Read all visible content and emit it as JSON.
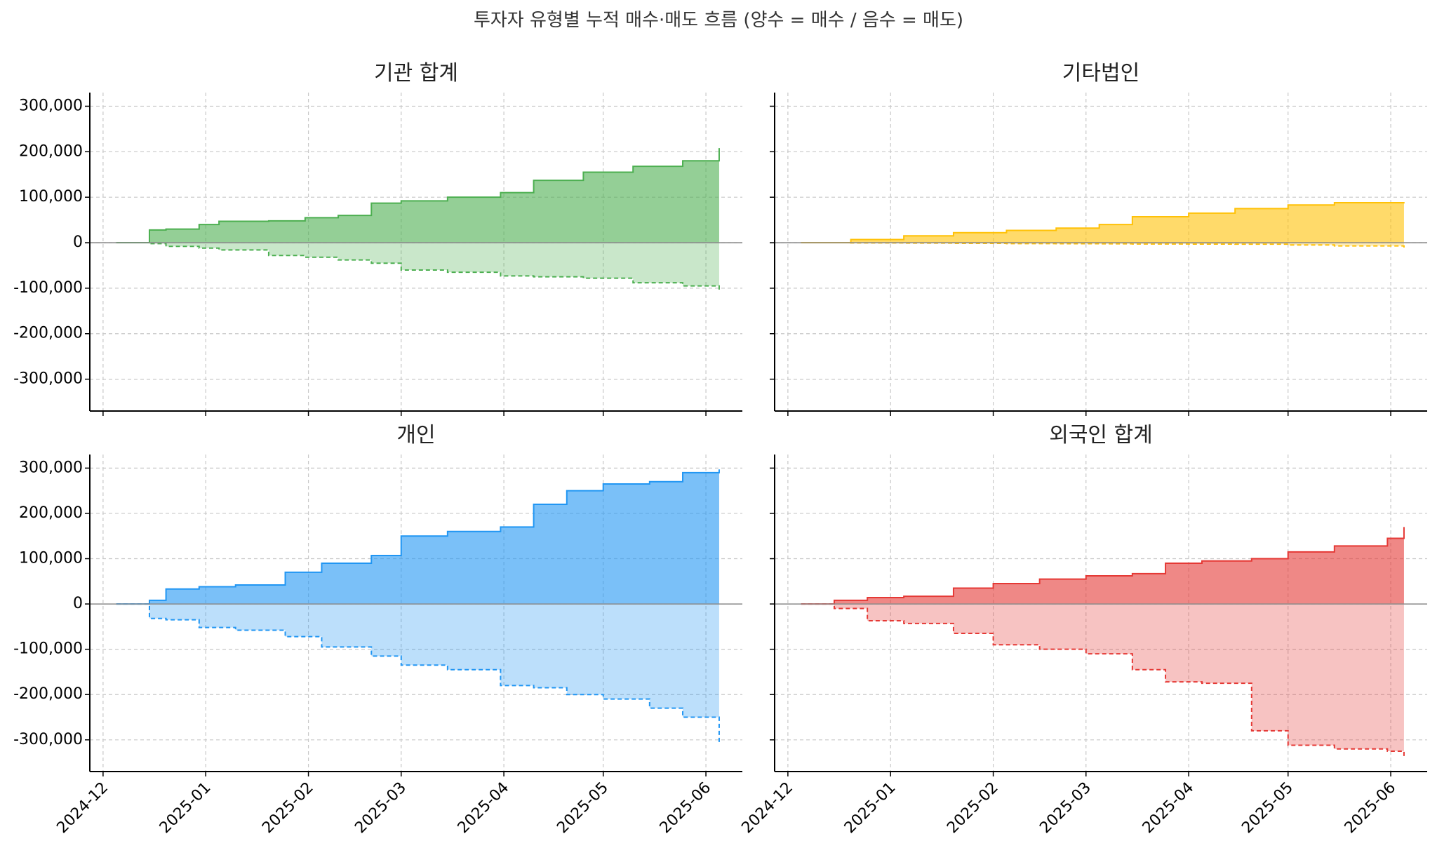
{
  "figure_title": "투자자 유형별 누적 매수·매도 흐름 (양수 = 매수 / 음수 = 매도)",
  "chart_data": [
    {
      "type": "area",
      "title": "기관 합계",
      "color": "#4caf50",
      "x_dates": [
        "2024-12-05",
        "2024-12-15",
        "2024-12-20",
        "2024-12-30",
        "2025-01-05",
        "2025-01-20",
        "2025-01-31",
        "2025-02-10",
        "2025-02-20",
        "2025-03-01",
        "2025-03-15",
        "2025-03-31",
        "2025-04-10",
        "2025-04-25",
        "2025-05-10",
        "2025-05-25",
        "2025-06-05"
      ],
      "buy": [
        0,
        28000,
        30000,
        40000,
        47000,
        48000,
        55000,
        60000,
        87000,
        92000,
        100000,
        110000,
        137000,
        155000,
        168000,
        180000,
        208000
      ],
      "sell": [
        0,
        -2000,
        -8000,
        -12000,
        -16000,
        -28000,
        -32000,
        -38000,
        -45000,
        -60000,
        -65000,
        -73000,
        -75000,
        -78000,
        -88000,
        -95000,
        -107000
      ],
      "ylim": [
        -370000,
        330000
      ],
      "yticks": [
        -300000,
        -200000,
        -100000,
        0,
        100000,
        200000,
        300000
      ],
      "ytick_labels": [
        "-300,000",
        "-200,000",
        "-100,000",
        "0",
        "100,000",
        "200,000",
        "300,000"
      ],
      "grid": true
    },
    {
      "type": "area",
      "title": "기타법인",
      "color": "#ffc107",
      "x_dates": [
        "2024-12-05",
        "2024-12-20",
        "2025-01-05",
        "2025-01-20",
        "2025-02-05",
        "2025-02-20",
        "2025-03-05",
        "2025-03-15",
        "2025-04-01",
        "2025-04-15",
        "2025-05-01",
        "2025-05-15",
        "2025-06-05"
      ],
      "buy": [
        0,
        7000,
        15000,
        22000,
        27000,
        32000,
        40000,
        57000,
        65000,
        75000,
        83000,
        88000,
        89000
      ],
      "sell": [
        0,
        -500,
        -1000,
        -1500,
        -2000,
        -2200,
        -2500,
        -2800,
        -3000,
        -3200,
        -5000,
        -7000,
        -11000
      ],
      "ylim": [
        -370000,
        330000
      ],
      "yticks": [
        -300000,
        -200000,
        -100000,
        0,
        100000,
        200000,
        300000
      ],
      "ytick_labels": [
        "-300,000",
        "-200,000",
        "-100,000",
        "0",
        "100,000",
        "200,000",
        "300,000"
      ],
      "grid": true
    },
    {
      "type": "area",
      "title": "개인",
      "color": "#2196f3",
      "x_dates": [
        "2024-12-05",
        "2024-12-15",
        "2024-12-20",
        "2024-12-30",
        "2025-01-10",
        "2025-01-25",
        "2025-02-05",
        "2025-02-20",
        "2025-03-01",
        "2025-03-15",
        "2025-03-31",
        "2025-04-10",
        "2025-04-20",
        "2025-05-01",
        "2025-05-15",
        "2025-05-25",
        "2025-06-05"
      ],
      "buy": [
        0,
        8000,
        33000,
        38000,
        42000,
        70000,
        90000,
        107000,
        150000,
        160000,
        170000,
        220000,
        250000,
        265000,
        270000,
        290000,
        297000
      ],
      "sell": [
        0,
        -32000,
        -35000,
        -52000,
        -58000,
        -72000,
        -95000,
        -115000,
        -135000,
        -145000,
        -180000,
        -185000,
        -200000,
        -210000,
        -230000,
        -250000,
        -305000
      ],
      "ylim": [
        -370000,
        330000
      ],
      "yticks": [
        -300000,
        -200000,
        -100000,
        0,
        100000,
        200000,
        300000
      ],
      "ytick_labels": [
        "-300,000",
        "-200,000",
        "-100,000",
        "0",
        "100,000",
        "200,000",
        "300,000"
      ],
      "x_tick_labels": [
        "2024-12",
        "2025-01",
        "2025-02",
        "2025-03",
        "2025-04",
        "2025-05",
        "2025-06"
      ],
      "grid": true
    },
    {
      "type": "area",
      "title": "외국인 합계",
      "color": "#e53935",
      "x_dates": [
        "2024-12-05",
        "2024-12-15",
        "2024-12-25",
        "2025-01-05",
        "2025-01-20",
        "2025-02-01",
        "2025-02-15",
        "2025-03-01",
        "2025-03-15",
        "2025-03-25",
        "2025-04-05",
        "2025-04-20",
        "2025-05-01",
        "2025-05-15",
        "2025-05-31",
        "2025-06-05"
      ],
      "buy": [
        0,
        8000,
        14000,
        17000,
        35000,
        45000,
        55000,
        62000,
        67000,
        90000,
        95000,
        100000,
        115000,
        128000,
        145000,
        170000
      ],
      "sell": [
        0,
        -10000,
        -37000,
        -43000,
        -65000,
        -90000,
        -100000,
        -110000,
        -145000,
        -172000,
        -175000,
        -280000,
        -312000,
        -320000,
        -325000,
        -337000
      ],
      "ylim": [
        -370000,
        330000
      ],
      "yticks": [
        -300000,
        -200000,
        -100000,
        0,
        100000,
        200000,
        300000
      ],
      "ytick_labels": [
        "-300,000",
        "-200,000",
        "-100,000",
        "0",
        "100,000",
        "200,000",
        "300,000"
      ],
      "x_tick_labels": [
        "2024-12",
        "2025-01",
        "2025-02",
        "2025-03",
        "2025-04",
        "2025-05",
        "2025-06"
      ],
      "grid": true
    }
  ],
  "x_ticks": [
    "2024-12-01",
    "2025-01-01",
    "2025-02-01",
    "2025-03-01",
    "2025-04-01",
    "2025-05-01",
    "2025-06-01"
  ]
}
